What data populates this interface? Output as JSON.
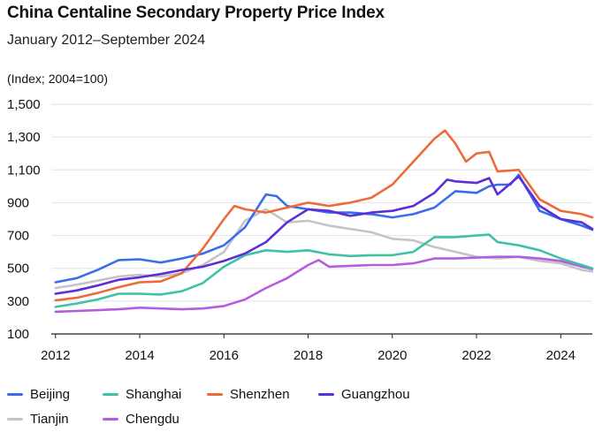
{
  "title": "China Centaline Secondary Property Price Index",
  "subtitle": "January 2012–September 2024",
  "unit_label": "(Index; 2004=100)",
  "chart_data": {
    "type": "line",
    "title": "China Centaline Secondary Property Price Index",
    "subtitle": "January 2012–September 2024",
    "ylabel": "(Index; 2004=100)",
    "xlabel": "",
    "xlim": [
      2011.9,
      2024.75
    ],
    "ylim": [
      100,
      1500
    ],
    "y_ticks": [
      100,
      300,
      500,
      700,
      900,
      1100,
      1300,
      1500
    ],
    "y_tick_labels": [
      "100",
      "300",
      "500",
      "700",
      "900",
      "1,100",
      "1,300",
      "1,500"
    ],
    "x_ticks": [
      2012,
      2014,
      2016,
      2018,
      2020,
      2022,
      2024
    ],
    "x_tick_labels": [
      "2012",
      "2014",
      "2016",
      "2018",
      "2020",
      "2022",
      "2024"
    ],
    "grid": "horizontal",
    "legend_position": "bottom",
    "series": [
      {
        "name": "Beijing",
        "color": "#3a6ee8",
        "x": [
          2012,
          2012.5,
          2013,
          2013.5,
          2014,
          2014.5,
          2015,
          2015.5,
          2016,
          2016.5,
          2017,
          2017.25,
          2017.5,
          2018,
          2018.5,
          2019,
          2019.5,
          2020,
          2020.5,
          2021,
          2021.5,
          2022,
          2022.3,
          2022.5,
          2022.8,
          2023,
          2023.5,
          2024,
          2024.5,
          2024.75
        ],
        "values": [
          415,
          440,
          490,
          550,
          555,
          535,
          560,
          590,
          640,
          750,
          950,
          940,
          880,
          860,
          840,
          840,
          830,
          810,
          830,
          870,
          970,
          960,
          1000,
          1010,
          1010,
          1070,
          850,
          800,
          760,
          735
        ]
      },
      {
        "name": "Shanghai",
        "color": "#3fc1a8",
        "x": [
          2012,
          2012.5,
          2013,
          2013.5,
          2014,
          2014.5,
          2015,
          2015.5,
          2016,
          2016.5,
          2017,
          2017.5,
          2018,
          2018.5,
          2019,
          2019.5,
          2020,
          2020.5,
          2021,
          2021.5,
          2022,
          2022.3,
          2022.5,
          2023,
          2023.5,
          2024,
          2024.5,
          2024.75
        ],
        "values": [
          265,
          285,
          310,
          345,
          345,
          340,
          360,
          410,
          510,
          580,
          610,
          600,
          610,
          585,
          575,
          580,
          580,
          600,
          690,
          690,
          700,
          705,
          660,
          640,
          610,
          560,
          520,
          500
        ]
      },
      {
        "name": "Shenzhen",
        "color": "#ef6a3a",
        "x": [
          2012,
          2012.5,
          2013,
          2013.5,
          2014,
          2014.5,
          2015,
          2015.5,
          2016,
          2016.25,
          2016.5,
          2017,
          2017.5,
          2018,
          2018.5,
          2019,
          2019.5,
          2020,
          2020.5,
          2021,
          2021.25,
          2021.5,
          2021.75,
          2022,
          2022.3,
          2022.5,
          2023,
          2023.5,
          2024,
          2024.5,
          2024.75
        ],
        "values": [
          305,
          320,
          350,
          385,
          415,
          420,
          470,
          620,
          800,
          880,
          860,
          840,
          870,
          900,
          880,
          900,
          930,
          1010,
          1150,
          1290,
          1340,
          1260,
          1150,
          1200,
          1210,
          1090,
          1100,
          920,
          850,
          830,
          810
        ]
      },
      {
        "name": "Guangzhou",
        "color": "#5b2fd6",
        "x": [
          2012,
          2012.5,
          2013,
          2013.5,
          2014,
          2014.5,
          2015,
          2015.5,
          2016,
          2016.5,
          2017,
          2017.5,
          2018,
          2018.5,
          2019,
          2019.5,
          2020,
          2020.5,
          2021,
          2021.3,
          2021.5,
          2022,
          2022.3,
          2022.5,
          2023,
          2023.5,
          2024,
          2024.5,
          2024.75
        ],
        "values": [
          345,
          365,
          395,
          430,
          445,
          465,
          490,
          510,
          545,
          590,
          660,
          780,
          860,
          850,
          820,
          840,
          850,
          880,
          960,
          1040,
          1030,
          1020,
          1050,
          950,
          1060,
          880,
          800,
          780,
          740
        ]
      },
      {
        "name": "Tianjin",
        "color": "#c4c4c4",
        "x": [
          2012,
          2012.5,
          2013,
          2013.5,
          2014,
          2014.5,
          2015,
          2015.5,
          2016,
          2016.5,
          2017,
          2017.5,
          2018,
          2018.5,
          2019,
          2019.5,
          2020,
          2020.5,
          2021,
          2021.5,
          2022,
          2022.5,
          2023,
          2023.5,
          2024,
          2024.5,
          2024.75
        ],
        "values": [
          380,
          400,
          425,
          450,
          460,
          450,
          470,
          520,
          600,
          790,
          860,
          780,
          790,
          760,
          740,
          720,
          680,
          670,
          630,
          600,
          570,
          560,
          570,
          545,
          530,
          490,
          480
        ]
      },
      {
        "name": "Chengdu",
        "color": "#b55ce0",
        "x": [
          2012,
          2012.5,
          2013,
          2013.5,
          2014,
          2014.5,
          2015,
          2015.5,
          2016,
          2016.5,
          2017,
          2017.5,
          2018,
          2018.25,
          2018.5,
          2019,
          2019.5,
          2020,
          2020.5,
          2021,
          2021.5,
          2022,
          2022.5,
          2023,
          2023.5,
          2024,
          2024.5,
          2024.75
        ],
        "values": [
          235,
          240,
          245,
          250,
          260,
          255,
          250,
          255,
          270,
          310,
          380,
          440,
          520,
          550,
          510,
          515,
          520,
          520,
          530,
          560,
          560,
          565,
          570,
          570,
          560,
          545,
          510,
          495
        ]
      }
    ]
  },
  "legend": {
    "items": [
      {
        "label": "Beijing",
        "color": "#3a6ee8"
      },
      {
        "label": "Shanghai",
        "color": "#3fc1a8"
      },
      {
        "label": "Shenzhen",
        "color": "#ef6a3a"
      },
      {
        "label": "Guangzhou",
        "color": "#5b2fd6"
      },
      {
        "label": "Tianjin",
        "color": "#c4c4c4"
      },
      {
        "label": "Chengdu",
        "color": "#b55ce0"
      }
    ]
  }
}
